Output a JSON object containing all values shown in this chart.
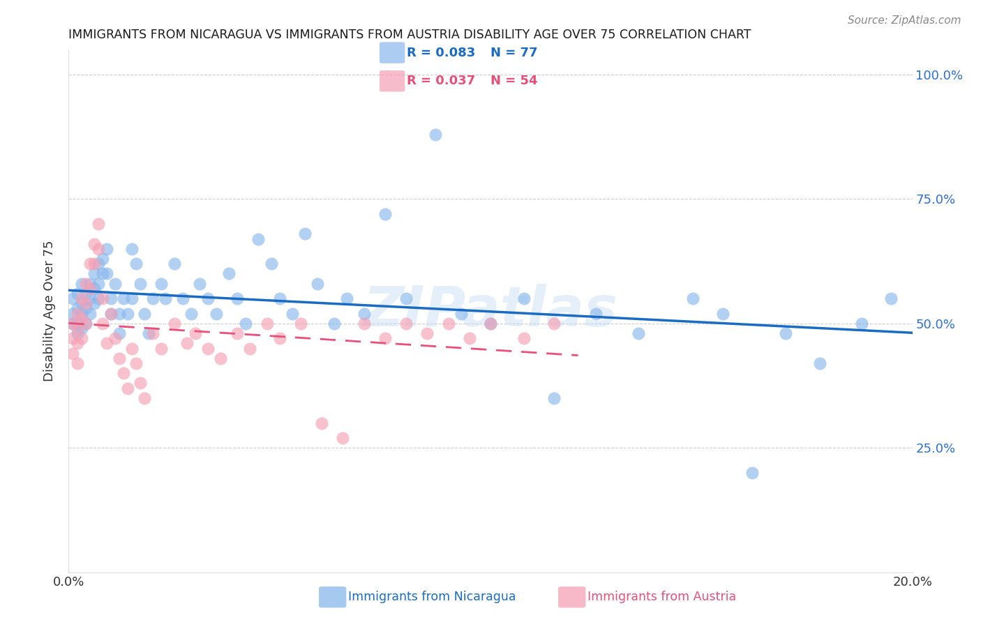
{
  "title": "IMMIGRANTS FROM NICARAGUA VS IMMIGRANTS FROM AUSTRIA DISABILITY AGE OVER 75 CORRELATION CHART",
  "source": "Source: ZipAtlas.com",
  "ylabel": "Disability Age Over 75",
  "xlabel_nicaragua": "Immigrants from Nicaragua",
  "xlabel_austria": "Immigrants from Austria",
  "color_nicaragua": "#89b8ec",
  "color_austria": "#f5a0b5",
  "trendline_nicaragua": "#1a6bc4",
  "trendline_austria": "#e8507a",
  "background_color": "#ffffff",
  "watermark": "ZIPatlas",
  "nic_R": "0.083",
  "nic_N": "77",
  "aut_R": "0.037",
  "aut_N": "54",
  "xmin": 0.0,
  "xmax": 0.2,
  "ymin": 0.0,
  "ymax": 1.05,
  "nicaragua_x": [
    0.001,
    0.001,
    0.001,
    0.002,
    0.002,
    0.002,
    0.002,
    0.003,
    0.003,
    0.003,
    0.003,
    0.004,
    0.004,
    0.004,
    0.005,
    0.005,
    0.005,
    0.006,
    0.006,
    0.006,
    0.007,
    0.007,
    0.007,
    0.008,
    0.008,
    0.009,
    0.009,
    0.01,
    0.01,
    0.011,
    0.012,
    0.012,
    0.013,
    0.014,
    0.015,
    0.015,
    0.016,
    0.017,
    0.018,
    0.019,
    0.02,
    0.022,
    0.023,
    0.025,
    0.027,
    0.029,
    0.031,
    0.033,
    0.035,
    0.038,
    0.04,
    0.042,
    0.045,
    0.048,
    0.05,
    0.053,
    0.056,
    0.059,
    0.063,
    0.066,
    0.07,
    0.075,
    0.08,
    0.087,
    0.093,
    0.1,
    0.108,
    0.115,
    0.125,
    0.135,
    0.148,
    0.155,
    0.162,
    0.17,
    0.178,
    0.188,
    0.195
  ],
  "nicaragua_y": [
    0.52,
    0.5,
    0.55,
    0.53,
    0.56,
    0.5,
    0.48,
    0.54,
    0.52,
    0.58,
    0.49,
    0.56,
    0.53,
    0.5,
    0.58,
    0.55,
    0.52,
    0.6,
    0.57,
    0.54,
    0.62,
    0.58,
    0.55,
    0.63,
    0.6,
    0.65,
    0.6,
    0.55,
    0.52,
    0.58,
    0.52,
    0.48,
    0.55,
    0.52,
    0.65,
    0.55,
    0.62,
    0.58,
    0.52,
    0.48,
    0.55,
    0.58,
    0.55,
    0.62,
    0.55,
    0.52,
    0.58,
    0.55,
    0.52,
    0.6,
    0.55,
    0.5,
    0.67,
    0.62,
    0.55,
    0.52,
    0.68,
    0.58,
    0.5,
    0.55,
    0.52,
    0.72,
    0.55,
    0.88,
    0.52,
    0.5,
    0.55,
    0.35,
    0.52,
    0.48,
    0.55,
    0.52,
    0.2,
    0.48,
    0.42,
    0.5,
    0.55
  ],
  "austria_x": [
    0.001,
    0.001,
    0.001,
    0.002,
    0.002,
    0.002,
    0.002,
    0.003,
    0.003,
    0.003,
    0.004,
    0.004,
    0.004,
    0.005,
    0.005,
    0.006,
    0.006,
    0.007,
    0.007,
    0.008,
    0.008,
    0.009,
    0.01,
    0.011,
    0.012,
    0.013,
    0.014,
    0.015,
    0.016,
    0.017,
    0.018,
    0.02,
    0.022,
    0.025,
    0.028,
    0.03,
    0.033,
    0.036,
    0.04,
    0.043,
    0.047,
    0.05,
    0.055,
    0.06,
    0.065,
    0.07,
    0.075,
    0.08,
    0.085,
    0.09,
    0.095,
    0.1,
    0.108,
    0.115
  ],
  "austria_y": [
    0.5,
    0.47,
    0.44,
    0.52,
    0.49,
    0.46,
    0.42,
    0.55,
    0.51,
    0.47,
    0.58,
    0.54,
    0.5,
    0.62,
    0.57,
    0.66,
    0.62,
    0.7,
    0.65,
    0.55,
    0.5,
    0.46,
    0.52,
    0.47,
    0.43,
    0.4,
    0.37,
    0.45,
    0.42,
    0.38,
    0.35,
    0.48,
    0.45,
    0.5,
    0.46,
    0.48,
    0.45,
    0.43,
    0.48,
    0.45,
    0.5,
    0.47,
    0.5,
    0.3,
    0.27,
    0.5,
    0.47,
    0.5,
    0.48,
    0.5,
    0.47,
    0.5,
    0.47,
    0.5
  ]
}
